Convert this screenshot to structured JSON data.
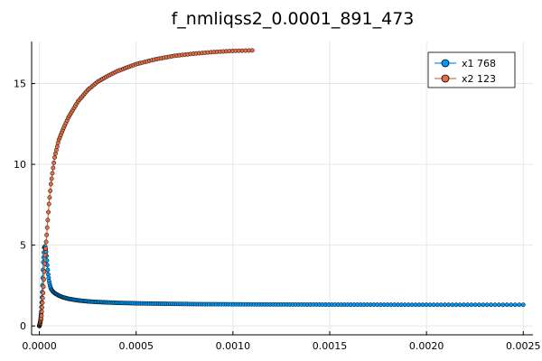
{
  "chart_data": {
    "type": "line",
    "title": "f_nmliqss2_0.0001_891_473",
    "xlabel": "",
    "ylabel": "",
    "xlim": [
      -4e-05,
      0.00255
    ],
    "ylim": [
      -0.55,
      17.6
    ],
    "x_ticks": [
      0.0,
      0.0005,
      0.001,
      0.0015,
      0.002,
      0.0025
    ],
    "x_tick_labels": [
      "0.0000",
      "0.0005",
      "0.0010",
      "0.0015",
      "0.0020",
      "0.0025"
    ],
    "y_ticks": [
      0,
      5,
      10,
      15
    ],
    "y_tick_labels": [
      "0",
      "5",
      "10",
      "15"
    ],
    "grid": true,
    "legend_position": "top-right",
    "series": [
      {
        "name": "x1 768",
        "color": "#009AFA",
        "marker": "circle",
        "x": [
          0.0,
          5e-06,
          1e-05,
          1.5e-05,
          2e-05,
          2.5e-05,
          3e-05,
          3.5e-05,
          4e-05,
          4.5e-05,
          5e-05,
          5.5e-05,
          6e-05,
          7e-05,
          8e-05,
          9e-05,
          0.0001,
          0.00012,
          0.00015,
          0.0002,
          0.00025,
          0.0003,
          0.0004,
          0.0005,
          0.0006,
          0.0008,
          0.001,
          0.0012,
          0.0015,
          0.002,
          0.0025
        ],
        "y": [
          0.0,
          0.25,
          0.9,
          2.2,
          3.9,
          4.85,
          4.95,
          4.55,
          3.9,
          3.25,
          2.8,
          2.5,
          2.3,
          2.12,
          2.02,
          1.95,
          1.88,
          1.78,
          1.68,
          1.58,
          1.52,
          1.48,
          1.43,
          1.4,
          1.38,
          1.35,
          1.34,
          1.33,
          1.32,
          1.31,
          1.31
        ]
      },
      {
        "name": "x2 123",
        "color": "#E26F46",
        "marker": "circle",
        "x": [
          0.0,
          1e-05,
          2e-05,
          3e-05,
          3.5e-05,
          4e-05,
          5e-05,
          6e-05,
          7e-05,
          8e-05,
          0.0001,
          0.00012,
          0.00015,
          0.0002,
          0.00025,
          0.0003,
          0.00035,
          0.0004,
          0.00045,
          0.0005,
          0.0006,
          0.0007,
          0.0008,
          0.0009,
          0.001,
          0.0011
        ],
        "y": [
          0.0,
          0.5,
          2.2,
          4.4,
          5.2,
          6.0,
          7.6,
          8.8,
          9.7,
          10.5,
          11.5,
          12.1,
          12.9,
          13.9,
          14.6,
          15.1,
          15.45,
          15.75,
          15.98,
          16.2,
          16.5,
          16.72,
          16.85,
          16.95,
          17.02,
          17.05
        ]
      }
    ]
  }
}
